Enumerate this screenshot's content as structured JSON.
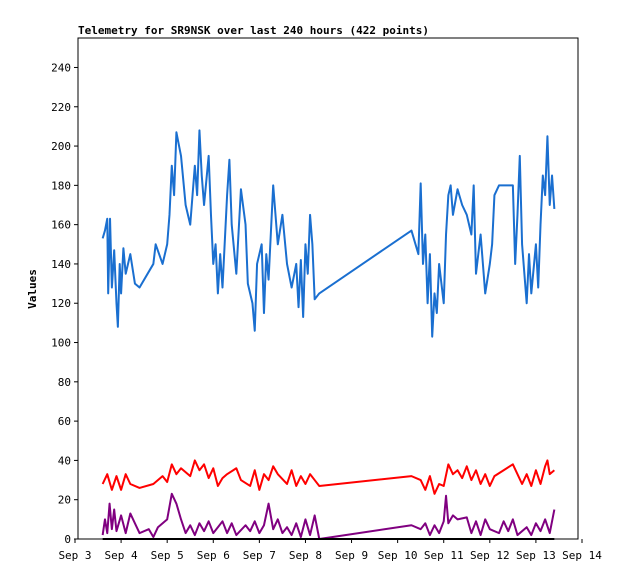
{
  "chart_data": {
    "type": "line",
    "title": "Telemetry for SR9NSK over last 240 hours (422 points)",
    "ylabel": "Values",
    "xlim": [
      3,
      14
    ],
    "xticks": [
      {
        "value": 3,
        "label": "Sep 3"
      },
      {
        "value": 4,
        "label": "Sep 4"
      },
      {
        "value": 5,
        "label": "Sep 5"
      },
      {
        "value": 6,
        "label": "Sep 6"
      },
      {
        "value": 7,
        "label": "Sep 7"
      },
      {
        "value": 8,
        "label": "Sep 8"
      },
      {
        "value": 9,
        "label": "Sep 9"
      },
      {
        "value": 10,
        "label": "Sep 10"
      },
      {
        "value": 11,
        "label": "Sep 11"
      },
      {
        "value": 12,
        "label": "Sep 12"
      },
      {
        "value": 13,
        "label": "Sep 13"
      },
      {
        "value": 14,
        "label": "Sep 14"
      }
    ],
    "ylim": [
      0,
      255
    ],
    "yticks": [
      0,
      20,
      40,
      60,
      80,
      100,
      120,
      140,
      160,
      180,
      200,
      220,
      240
    ],
    "series": [
      {
        "color": "#1a6fd0",
        "x": [
          3.6,
          3.65,
          3.7,
          3.72,
          3.76,
          3.8,
          3.85,
          3.9,
          3.93,
          3.97,
          4.0,
          4.05,
          4.1,
          4.2,
          4.3,
          4.4,
          4.7,
          4.75,
          4.9,
          5.0,
          5.05,
          5.1,
          5.15,
          5.2,
          5.3,
          5.4,
          5.5,
          5.6,
          5.65,
          5.7,
          5.75,
          5.8,
          5.9,
          5.95,
          6.0,
          6.05,
          6.1,
          6.15,
          6.2,
          6.3,
          6.35,
          6.4,
          6.5,
          6.6,
          6.7,
          6.75,
          6.85,
          6.9,
          6.95,
          7.05,
          7.1,
          7.15,
          7.2,
          7.3,
          7.4,
          7.5,
          7.6,
          7.7,
          7.8,
          7.85,
          7.9,
          7.95,
          8.0,
          8.05,
          8.1,
          8.15,
          8.2,
          8.3,
          10.3,
          10.45,
          10.5,
          10.55,
          10.6,
          10.65,
          10.7,
          10.75,
          10.8,
          10.85,
          10.9,
          11.0,
          11.05,
          11.1,
          11.15,
          11.2,
          11.3,
          11.4,
          11.5,
          11.6,
          11.65,
          11.7,
          11.8,
          11.9,
          12.0,
          12.05,
          12.1,
          12.2,
          12.5,
          12.55,
          12.6,
          12.65,
          12.7,
          12.8,
          12.85,
          12.9,
          13.0,
          13.05,
          13.1,
          13.15,
          13.2,
          13.25,
          13.3,
          13.35,
          13.4
        ],
        "values": [
          153,
          157,
          163,
          125,
          163,
          128,
          147,
          120,
          108,
          140,
          125,
          148,
          135,
          145,
          130,
          128,
          140,
          150,
          140,
          150,
          165,
          190,
          175,
          207,
          195,
          170,
          160,
          190,
          175,
          208,
          185,
          170,
          195,
          165,
          140,
          150,
          125,
          145,
          128,
          175,
          193,
          160,
          135,
          178,
          160,
          130,
          120,
          106,
          140,
          150,
          115,
          145,
          132,
          180,
          150,
          165,
          140,
          128,
          140,
          118,
          142,
          113,
          150,
          135,
          165,
          150,
          122,
          125,
          157,
          145,
          181,
          140,
          155,
          120,
          145,
          103,
          125,
          115,
          140,
          120,
          155,
          175,
          180,
          165,
          178,
          170,
          165,
          155,
          180,
          135,
          155,
          125,
          140,
          150,
          175,
          180,
          180,
          140,
          165,
          195,
          150,
          120,
          145,
          125,
          150,
          128,
          160,
          185,
          175,
          205,
          170,
          185,
          168
        ]
      },
      {
        "color": "#ff0000",
        "x": [
          3.6,
          3.7,
          3.8,
          3.9,
          4.0,
          4.1,
          4.2,
          4.4,
          4.7,
          4.9,
          5.0,
          5.1,
          5.2,
          5.3,
          5.5,
          5.6,
          5.7,
          5.8,
          5.9,
          6.0,
          6.1,
          6.2,
          6.3,
          6.5,
          6.6,
          6.8,
          6.9,
          7.0,
          7.1,
          7.2,
          7.3,
          7.4,
          7.6,
          7.7,
          7.8,
          7.9,
          8.0,
          8.1,
          8.2,
          8.3,
          10.3,
          10.5,
          10.6,
          10.7,
          10.8,
          10.9,
          11.0,
          11.1,
          11.2,
          11.3,
          11.4,
          11.5,
          11.6,
          11.7,
          11.8,
          11.9,
          12.0,
          12.1,
          12.3,
          12.5,
          12.6,
          12.7,
          12.8,
          12.9,
          13.0,
          13.1,
          13.2,
          13.25,
          13.3,
          13.4
        ],
        "values": [
          28,
          33,
          25,
          32,
          25,
          33,
          28,
          26,
          28,
          32,
          29,
          38,
          33,
          36,
          32,
          40,
          35,
          38,
          31,
          36,
          27,
          31,
          33,
          36,
          30,
          27,
          35,
          25,
          33,
          30,
          37,
          33,
          28,
          35,
          27,
          32,
          28,
          33,
          30,
          27,
          32,
          30,
          25,
          32,
          23,
          28,
          27,
          38,
          33,
          35,
          31,
          37,
          30,
          35,
          28,
          33,
          27,
          32,
          35,
          38,
          33,
          28,
          33,
          27,
          35,
          28,
          37,
          40,
          33,
          35
        ]
      },
      {
        "color": "#800080",
        "x": [
          3.6,
          3.65,
          3.7,
          3.75,
          3.8,
          3.85,
          3.9,
          4.0,
          4.1,
          4.2,
          4.3,
          4.4,
          4.6,
          4.7,
          4.8,
          5.0,
          5.1,
          5.2,
          5.3,
          5.4,
          5.5,
          5.6,
          5.7,
          5.8,
          5.9,
          6.0,
          6.1,
          6.2,
          6.3,
          6.4,
          6.5,
          6.7,
          6.8,
          6.9,
          7.0,
          7.1,
          7.2,
          7.3,
          7.4,
          7.5,
          7.6,
          7.7,
          7.8,
          7.9,
          8.0,
          8.1,
          8.2,
          8.3,
          10.3,
          10.5,
          10.6,
          10.7,
          10.8,
          10.9,
          11.0,
          11.05,
          11.1,
          11.2,
          11.3,
          11.5,
          11.6,
          11.7,
          11.8,
          11.9,
          12.0,
          12.2,
          12.3,
          12.4,
          12.5,
          12.6,
          12.8,
          12.9,
          13.0,
          13.1,
          13.2,
          13.3,
          13.4
        ],
        "values": [
          2,
          10,
          3,
          18,
          5,
          15,
          4,
          12,
          3,
          13,
          8,
          3,
          5,
          1,
          6,
          10,
          23,
          18,
          10,
          3,
          7,
          2,
          8,
          4,
          9,
          3,
          6,
          9,
          3,
          8,
          2,
          7,
          4,
          9,
          3,
          7,
          18,
          5,
          10,
          3,
          6,
          2,
          8,
          1,
          10,
          2,
          12,
          0,
          7,
          5,
          8,
          2,
          7,
          3,
          9,
          22,
          8,
          12,
          10,
          11,
          3,
          9,
          2,
          10,
          5,
          3,
          9,
          4,
          10,
          2,
          6,
          2,
          8,
          4,
          10,
          3,
          15
        ]
      },
      {
        "color": "#000000",
        "x": [
          3.6,
          13.4
        ],
        "values": [
          0,
          0
        ]
      }
    ]
  }
}
